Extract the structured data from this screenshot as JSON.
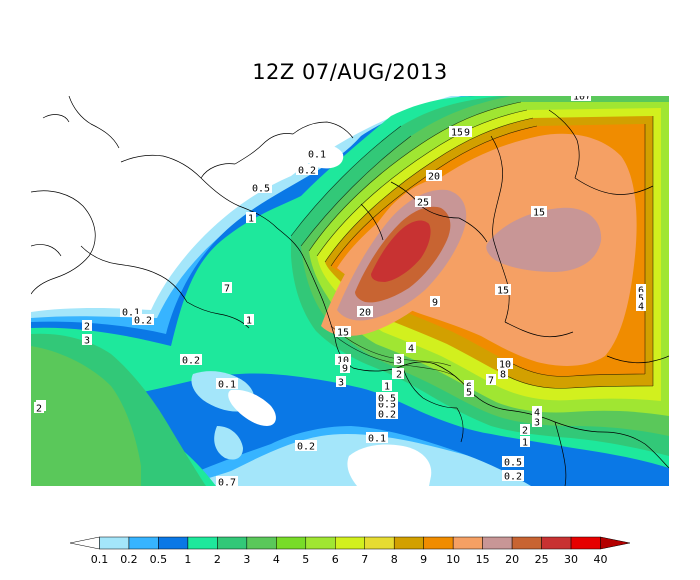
{
  "title": "12Z 07/AUG/2013",
  "colorbar": {
    "ticks": [
      "0.1",
      "0.2",
      "0.5",
      "1",
      "2",
      "3",
      "4",
      "5",
      "6",
      "7",
      "8",
      "9",
      "10",
      "15",
      "20",
      "25",
      "30",
      "40"
    ],
    "colors": [
      "#ffffff",
      "#a4e6fa",
      "#37b4ff",
      "#0a78e6",
      "#1ee89c",
      "#32c878",
      "#5ac85a",
      "#78dc28",
      "#a0e632",
      "#d2f01e",
      "#e6dc32",
      "#d2a000",
      "#f08c00",
      "#f5a064",
      "#c89696",
      "#c86432",
      "#c83232",
      "#e60000",
      "#b40000"
    ]
  },
  "contour_labels": [
    {
      "t": "0.1"
    },
    {
      "t": "0.2"
    },
    {
      "t": "0.5"
    },
    {
      "t": "1"
    },
    {
      "t": "7"
    },
    {
      "t": "1"
    },
    {
      "t": "0.1"
    },
    {
      "t": "0.2"
    },
    {
      "t": "2"
    },
    {
      "t": "3"
    },
    {
      "t": "0.2"
    },
    {
      "t": "0.1"
    },
    {
      "t": "4"
    },
    {
      "t": "2"
    },
    {
      "t": "1"
    },
    {
      "t": "3"
    },
    {
      "t": "0.5"
    },
    {
      "t": "0.5"
    },
    {
      "t": "0.2"
    },
    {
      "t": "0.7"
    },
    {
      "t": "10"
    },
    {
      "t": "9"
    },
    {
      "t": "15"
    },
    {
      "t": "20"
    },
    {
      "t": "25"
    },
    {
      "t": "15"
    },
    {
      "t": "15"
    },
    {
      "t": "9"
    },
    {
      "t": "20"
    },
    {
      "t": "15"
    },
    {
      "t": "10"
    },
    {
      "t": "9"
    },
    {
      "t": "3"
    },
    {
      "t": "4"
    },
    {
      "t": "3"
    },
    {
      "t": "2"
    },
    {
      "t": "1"
    },
    {
      "t": "0.5"
    },
    {
      "t": "0.2"
    },
    {
      "t": "0.1"
    },
    {
      "t": "10"
    },
    {
      "t": "8"
    },
    {
      "t": "7"
    },
    {
      "t": "6"
    },
    {
      "t": "5"
    },
    {
      "t": "4"
    },
    {
      "t": "3"
    },
    {
      "t": "2"
    },
    {
      "t": "1"
    },
    {
      "t": "0.5"
    },
    {
      "t": "0.2"
    },
    {
      "t": "6"
    },
    {
      "t": "5"
    },
    {
      "t": "4"
    },
    {
      "t": "10"
    },
    {
      "t": "0.2"
    }
  ]
}
